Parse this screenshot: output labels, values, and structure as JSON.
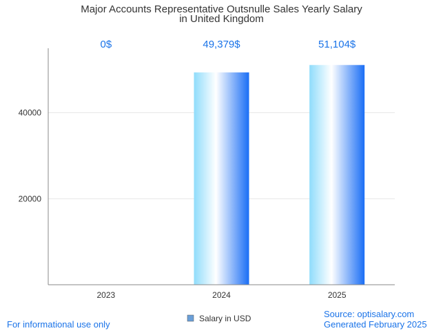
{
  "chart_data": {
    "type": "bar",
    "title": "Major Accounts Representative Outsnulle Sales Yearly Salary",
    "subtitle": "in United Kingdom",
    "categories": [
      "2023",
      "2024",
      "2025"
    ],
    "series": [
      {
        "name": "Salary in USD",
        "values": [
          0,
          49379,
          51104
        ],
        "data_labels": [
          "0$",
          "49,379$",
          "51,104$"
        ]
      }
    ],
    "xlabel": "",
    "ylabel": "",
    "ylim": [
      0,
      55000
    ],
    "yticks": [
      20000,
      40000
    ],
    "ytick_labels": [
      "20000",
      "40000"
    ],
    "grid": true,
    "legend_position": "bottom-center",
    "colors": {
      "bar_light": "#8fdcfb",
      "bar_mid": "#ffffff",
      "bar_dark": "#1a6ef5",
      "grid": "#e6e6e6",
      "axis": "#888888",
      "label": "#1a73e8",
      "legend_swatch": "#6a9fd8"
    }
  },
  "footer": {
    "left": "For informational use only",
    "source": "Source: optisalary.com",
    "generated": "Generated February 2025"
  }
}
